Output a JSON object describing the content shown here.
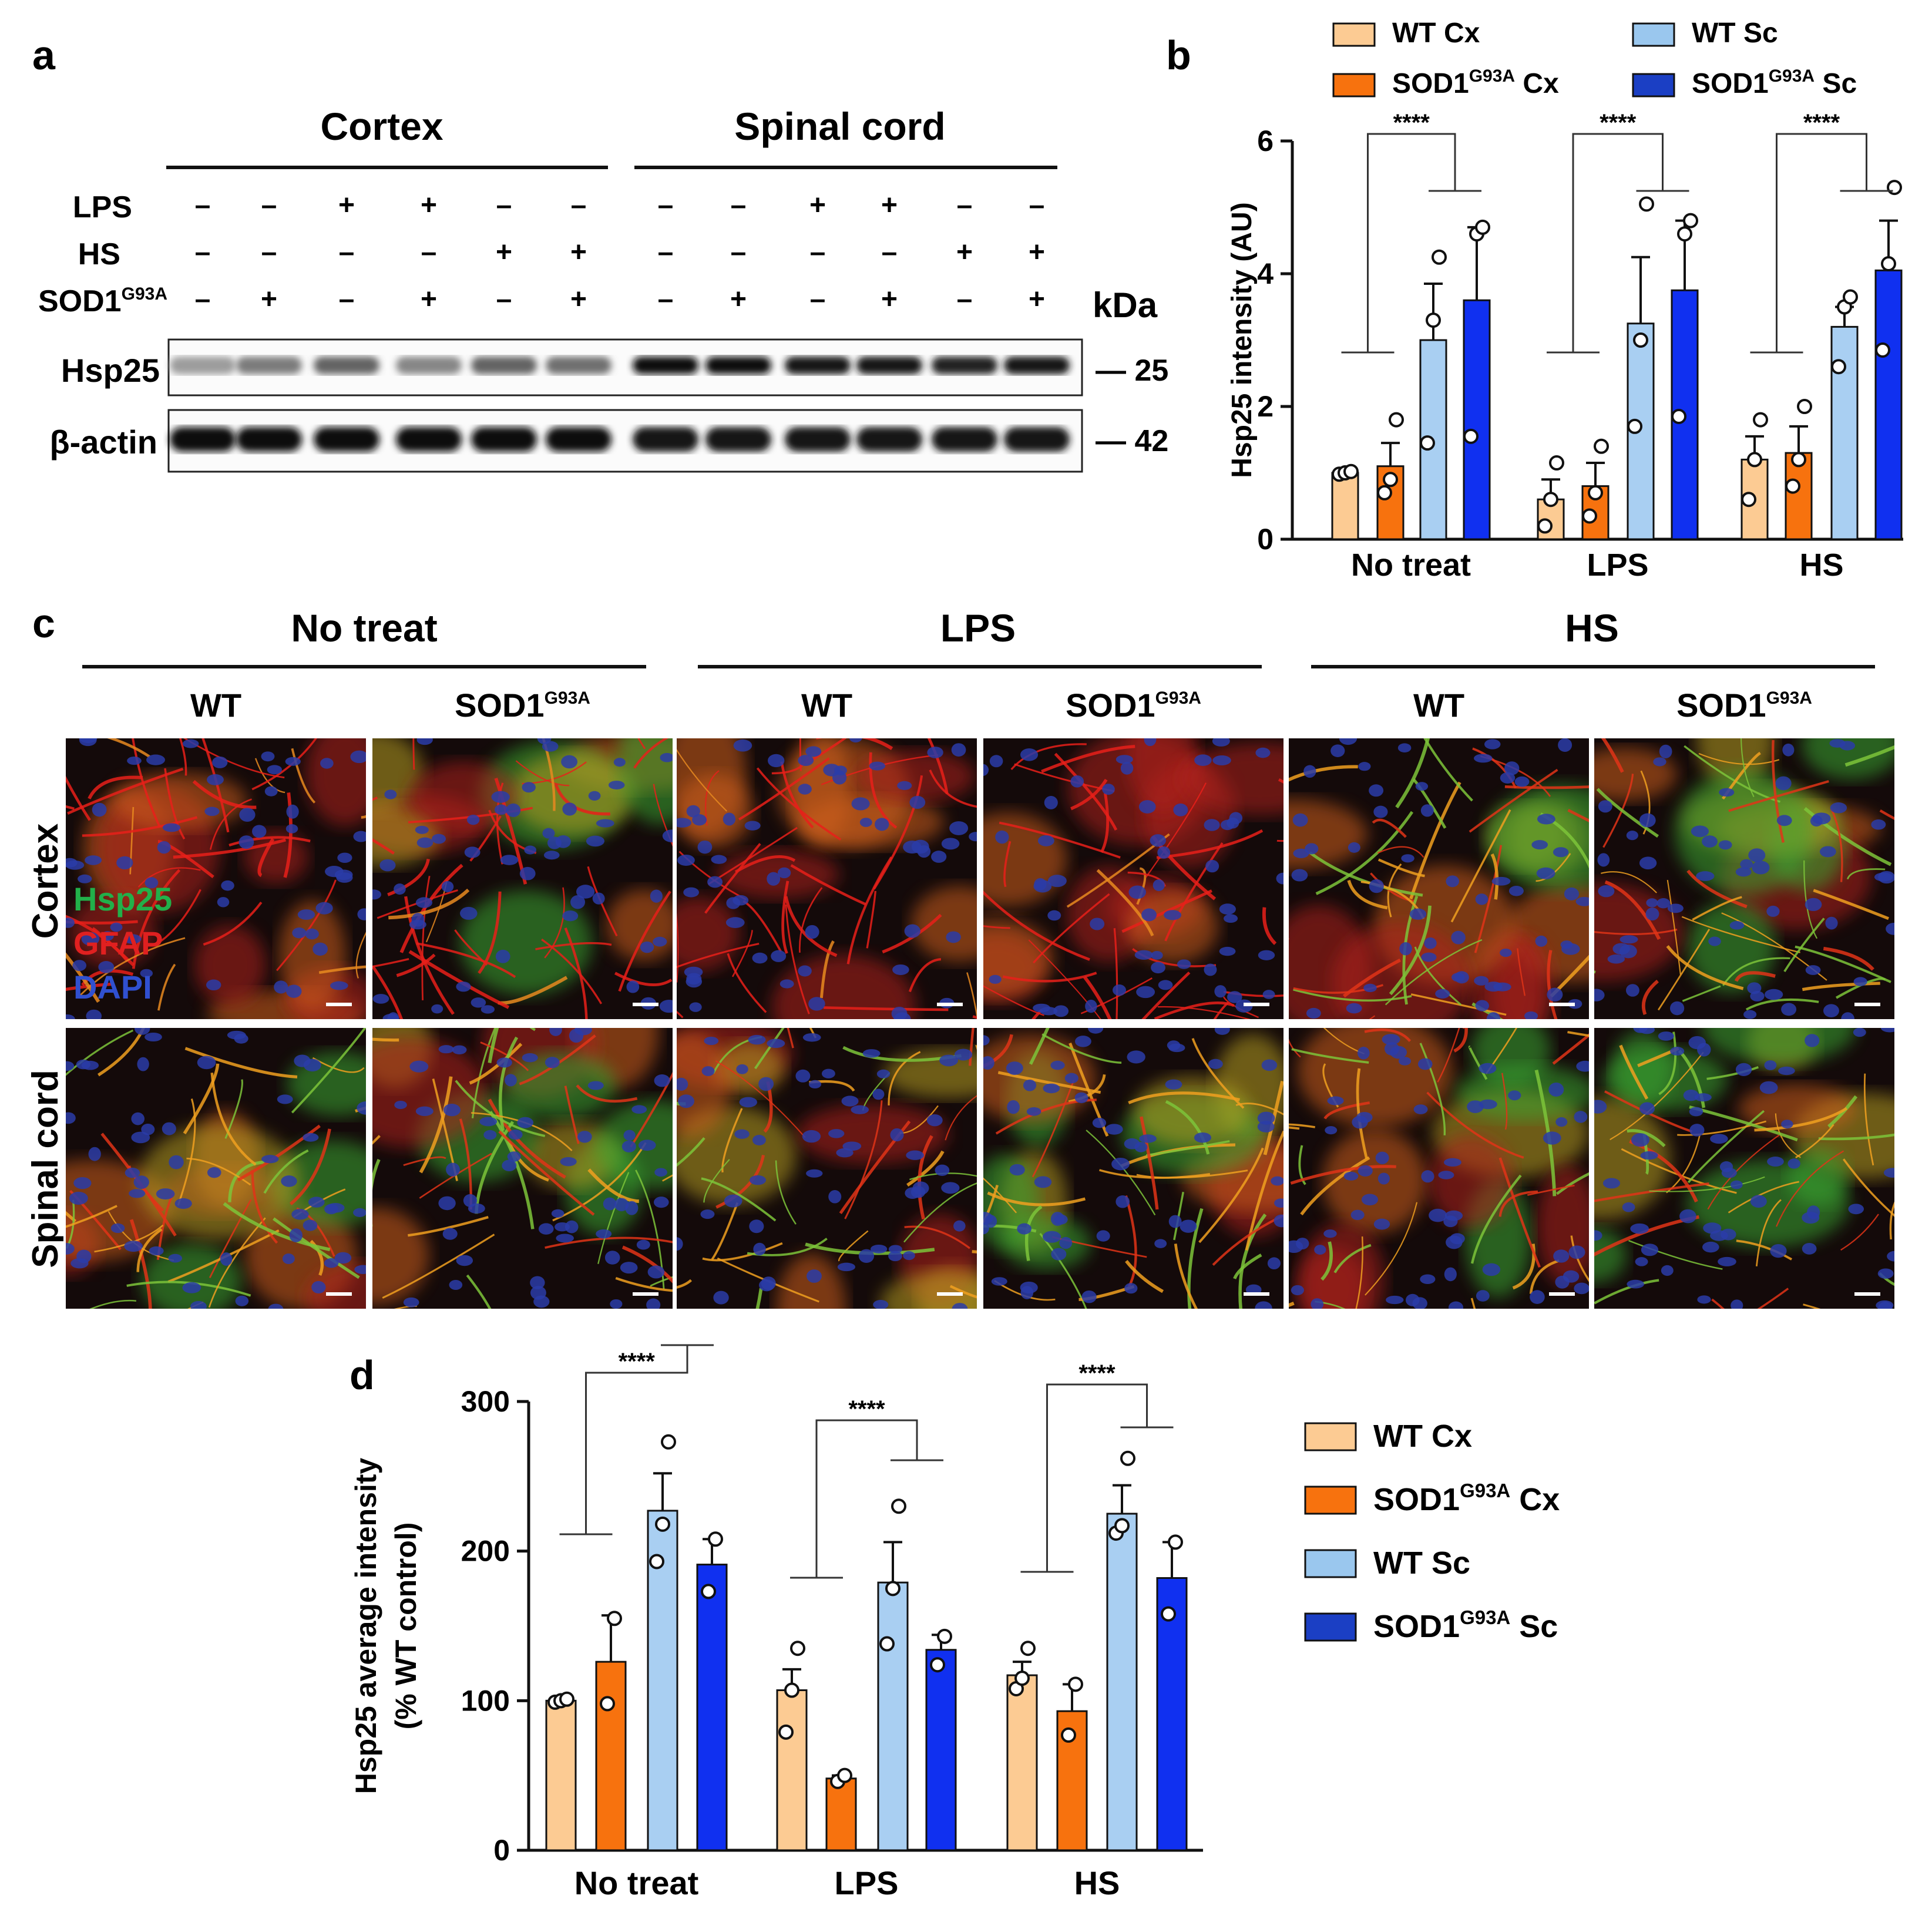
{
  "colors": {
    "wt_cx": "#FCCB93",
    "sod1_cx": "#F7720E",
    "wt_sc": "#A9CFF2",
    "sod1_sc": "#1030F0",
    "wt_sc_legend": "#9AC7EE",
    "sod1_sc_legend": "#1B3FC4"
  },
  "panel_a": {
    "letter": "a",
    "groups": [
      "Cortex",
      "Spinal cord"
    ],
    "row_labels": {
      "lps": "LPS",
      "hs": "HS",
      "sod1_main": "SOD1",
      "sod1_sup": "G93A"
    },
    "lps": [
      "–",
      "–",
      "+",
      "+",
      "–",
      "–",
      "–",
      "–",
      "+",
      "+",
      "–",
      "–"
    ],
    "hs": [
      "–",
      "–",
      "–",
      "–",
      "+",
      "+",
      "–",
      "–",
      "–",
      "–",
      "+",
      "+"
    ],
    "sod1": [
      "–",
      "+",
      "–",
      "+",
      "–",
      "+",
      "–",
      "+",
      "–",
      "+",
      "–",
      "+"
    ],
    "kda_label": "kDa",
    "bands": [
      {
        "label": "Hsp25",
        "marker": "— 25",
        "intensity": [
          0.35,
          0.5,
          0.6,
          0.45,
          0.6,
          0.55,
          1.0,
          1.0,
          0.95,
          0.95,
          0.9,
          0.95
        ]
      },
      {
        "label": "β-actin",
        "marker": "— 42",
        "intensity": [
          1.0,
          1.0,
          1.0,
          1.0,
          1.0,
          1.0,
          0.95,
          0.95,
          0.95,
          0.95,
          0.95,
          0.95
        ]
      }
    ]
  },
  "panel_c": {
    "letter": "c",
    "conditions": [
      "No treat",
      "LPS",
      "HS"
    ],
    "genotypes": [
      {
        "main": "WT",
        "sup": ""
      },
      {
        "main": "SOD1",
        "sup": "G93A"
      },
      {
        "main": "WT",
        "sup": ""
      },
      {
        "main": "SOD1",
        "sup": "G93A"
      },
      {
        "main": "WT",
        "sup": ""
      },
      {
        "main": "SOD1",
        "sup": "G93A"
      }
    ],
    "rows": [
      "Cortex",
      "Spinal cord"
    ],
    "stain_labels": [
      {
        "text": "Hsp25",
        "color": "#22B04A"
      },
      {
        "text": "GFAP",
        "color": "#E02020"
      },
      {
        "text": "DAPI",
        "color": "#3050D0"
      }
    ]
  },
  "chart_data": [
    {
      "panel": "b",
      "type": "bar",
      "categories": [
        "No treat",
        "LPS",
        "HS"
      ],
      "ylabel": "Hsp25 intensity (AU)",
      "ylim": [
        0,
        6
      ],
      "yticks": [
        "0",
        "2",
        "4",
        "6"
      ],
      "legend_position": "top",
      "series": [
        {
          "name": "WT Cx",
          "name_main": "WT Cx",
          "name_sup": "",
          "name_tail": "",
          "values": [
            1.0,
            0.6,
            1.2
          ],
          "errors": [
            0.05,
            0.3,
            0.35
          ],
          "points": [
            [
              0.98,
              1.0,
              1.02
            ],
            [
              0.2,
              0.6,
              1.15
            ],
            [
              0.6,
              1.2,
              1.8
            ]
          ]
        },
        {
          "name": "SOD1G93A Cx",
          "name_main": "SOD1",
          "name_sup": "G93A",
          "name_tail": " Cx",
          "values": [
            1.1,
            0.8,
            1.3
          ],
          "errors": [
            0.35,
            0.35,
            0.4
          ],
          "points": [
            [
              0.7,
              0.9,
              1.8
            ],
            [
              0.35,
              0.7,
              1.4
            ],
            [
              0.8,
              1.2,
              2.0
            ]
          ]
        },
        {
          "name": "WT Sc",
          "name_main": "WT Sc",
          "name_sup": "",
          "name_tail": "",
          "values": [
            3.0,
            3.25,
            3.2
          ],
          "errors": [
            0.85,
            1.0,
            0.3
          ],
          "points": [
            [
              1.45,
              3.3,
              4.25
            ],
            [
              1.7,
              3.0,
              5.05
            ],
            [
              2.6,
              3.5,
              3.65
            ]
          ]
        },
        {
          "name": "SOD1G93A Sc",
          "name_main": "SOD1",
          "name_sup": "G93A",
          "name_tail": " Sc",
          "values": [
            3.6,
            3.75,
            4.05
          ],
          "errors": [
            1.1,
            1.05,
            0.75
          ],
          "points": [
            [
              1.55,
              4.6,
              4.7
            ],
            [
              1.85,
              4.6,
              4.8
            ],
            [
              2.85,
              4.15,
              5.3
            ]
          ]
        }
      ],
      "significance": [
        "****",
        "****",
        "****"
      ]
    },
    {
      "panel": "d",
      "type": "bar",
      "categories": [
        "No treat",
        "LPS",
        "HS"
      ],
      "ylabel_line1": "Hsp25 average intensity",
      "ylabel_line2": "(% WT control)",
      "ylim": [
        0,
        300
      ],
      "yticks": [
        "0",
        "100",
        "200",
        "300"
      ],
      "legend_position": "right",
      "series": [
        {
          "name": "WT Cx",
          "name_main": "WT Cx",
          "name_sup": "",
          "name_tail": "",
          "values": [
            100,
            107,
            117
          ],
          "errors": [
            1,
            14,
            9
          ],
          "points": [
            [
              99,
              100,
              101
            ],
            [
              79,
              107,
              135
            ],
            [
              108,
              115,
              135
            ]
          ]
        },
        {
          "name": "SOD1G93A Cx",
          "name_main": "SOD1",
          "name_sup": "G93A",
          "name_tail": " Cx",
          "values": [
            126,
            48,
            93
          ],
          "errors": [
            31,
            2,
            18
          ],
          "points": [
            [
              98,
              155
            ],
            [
              46,
              50
            ],
            [
              77,
              111
            ]
          ]
        },
        {
          "name": "WT Sc",
          "name_main": "WT Sc",
          "name_sup": "",
          "name_tail": "",
          "values": [
            227,
            179,
            225
          ],
          "errors": [
            25,
            27,
            19
          ],
          "points": [
            [
              193,
              218,
              273
            ],
            [
              138,
              175,
              230
            ],
            [
              212,
              217,
              262
            ]
          ]
        },
        {
          "name": "SOD1G93A Sc",
          "name_main": "SOD1",
          "name_sup": "G93A",
          "name_tail": " Sc",
          "values": [
            191,
            134,
            182
          ],
          "errors": [
            17,
            10,
            24
          ],
          "points": [
            [
              173,
              208
            ],
            [
              124,
              143
            ],
            [
              158,
              206
            ]
          ]
        }
      ],
      "significance": [
        "****",
        "****",
        "****"
      ]
    }
  ]
}
